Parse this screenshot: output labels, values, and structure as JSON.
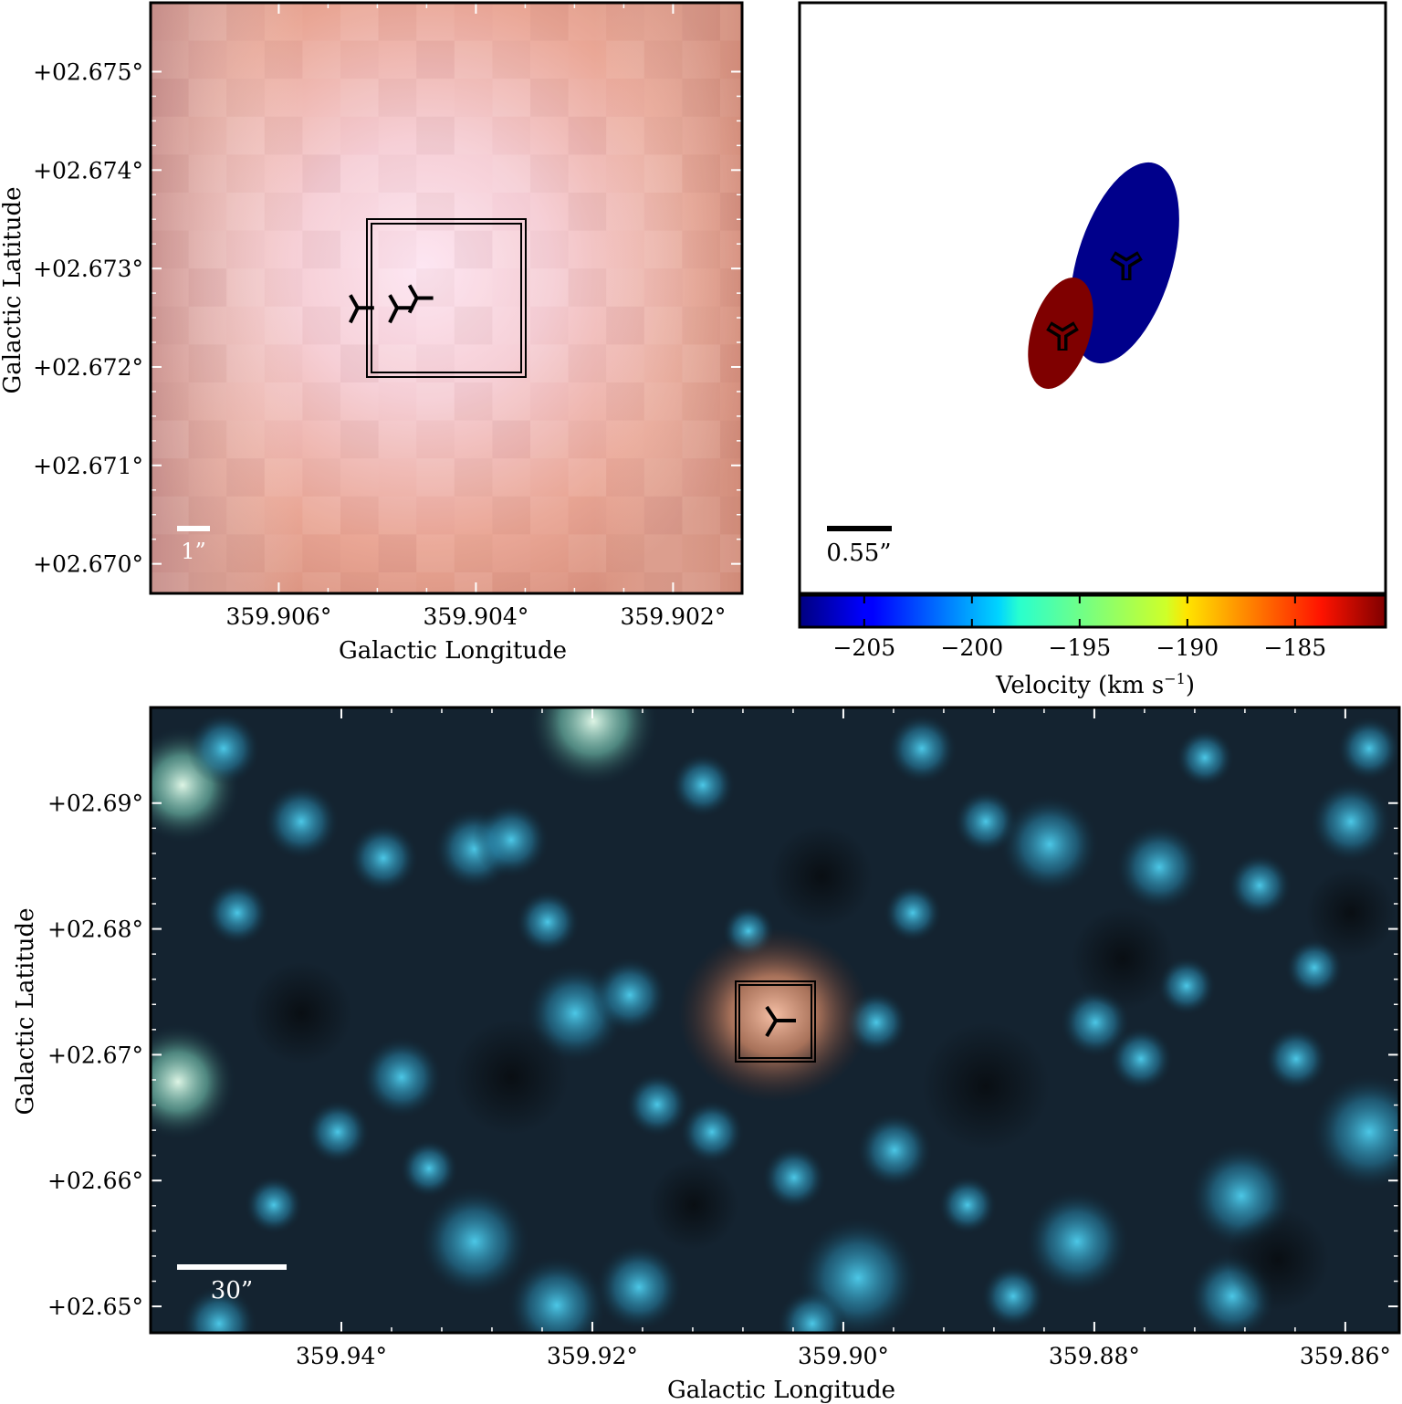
{
  "panels": {
    "top_left": {
      "xlabel": "Galactic Longitude",
      "ylabel": "Galactic Latitude",
      "xticks": [
        "359.906°",
        "359.904°",
        "359.902°"
      ],
      "xtick_values": [
        359.906,
        359.904,
        359.902
      ],
      "yticks": [
        "+02.675°",
        "+02.674°",
        "+02.673°",
        "+02.672°",
        "+02.671°",
        "+02.670°"
      ],
      "ytick_values": [
        2.675,
        2.674,
        2.673,
        2.672,
        2.671,
        2.67
      ],
      "xlim": [
        359.9073,
        359.9013
      ],
      "ylim": [
        2.6697,
        2.6757
      ],
      "scalebar_label": "1”",
      "markers": [
        {
          "l": 359.9046,
          "b": 2.6727
        },
        {
          "l": 359.9048,
          "b": 2.6726
        },
        {
          "l": 359.9052,
          "b": 2.6726
        }
      ],
      "box": {
        "l1": 359.9053,
        "l2": 359.9037,
        "b1": 2.67192,
        "b2": 2.67352
      }
    },
    "top_right": {
      "scalebar_label": "0.55”",
      "colorbar": {
        "label": "Velocity (km s",
        "label_sup": "−1",
        "label_end": ")",
        "ticks": [
          "−205",
          "−200",
          "−195",
          "−190",
          "−185"
        ],
        "tick_values": [
          -205,
          -200,
          -195,
          -190,
          -185
        ],
        "range": [
          -208.0,
          -180.8
        ]
      },
      "ellipses": [
        {
          "name": "blue-component",
          "velocity": -207.5,
          "color": "#00008b"
        },
        {
          "name": "red-component",
          "velocity": -181.5,
          "color": "#7f0000"
        }
      ]
    },
    "bottom": {
      "xlabel": "Galactic Longitude",
      "ylabel": "Galactic Latitude",
      "xticks": [
        "359.94°",
        "359.92°",
        "359.90°",
        "359.88°",
        "359.86°"
      ],
      "xtick_values": [
        359.94,
        359.92,
        359.9,
        359.88,
        359.86
      ],
      "yticks": [
        "+02.69°",
        "+02.68°",
        "+02.67°",
        "+02.66°",
        "+02.65°"
      ],
      "ytick_values": [
        2.69,
        2.68,
        2.67,
        2.66,
        2.65
      ],
      "xlim": [
        359.9552,
        359.8557
      ],
      "ylim": [
        2.6479,
        2.6976
      ],
      "scalebar_label": "30”",
      "box": {
        "l1": 359.9081,
        "l2": 359.9019,
        "b1": 2.6698,
        "b2": 2.6761
      }
    }
  },
  "colors": {
    "frame": "#000000",
    "scalebar_light": "#ffffff",
    "scalebar_dark": "#000000"
  }
}
